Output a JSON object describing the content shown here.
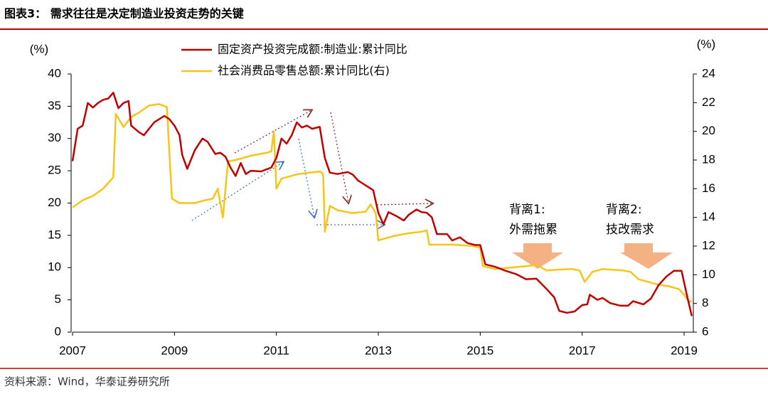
{
  "chart_data": {
    "type": "line",
    "title": "图表3：  需求往往是决定制造业投资走势的关键",
    "source": "资料来源：Wind，华泰证券研究所",
    "y_label": "(%)",
    "y2_label": "(%)",
    "xlim": [
      2007,
      2019.2
    ],
    "xticks": [
      2007,
      2009,
      2011,
      2013,
      2015,
      2017,
      2019
    ],
    "ylim": [
      0,
      40
    ],
    "yticks": [
      0,
      5,
      10,
      15,
      20,
      25,
      30,
      35,
      40
    ],
    "y2lim": [
      6,
      24
    ],
    "y2ticks": [
      6,
      8,
      10,
      12,
      14,
      16,
      18,
      20,
      22,
      24
    ],
    "legend": "top",
    "annotations": [
      "背离1:",
      "外需拖累",
      "背离2:",
      "技改需求"
    ],
    "series": [
      {
        "name": "固定资产投资完成额:制造业:累计同比",
        "color": "#c00000",
        "axis": "y",
        "x": [
          2007.0,
          2007.1,
          2007.2,
          2007.3,
          2007.4,
          2007.5,
          2007.6,
          2007.7,
          2007.8,
          2007.9,
          2008.0,
          2008.1,
          2008.15,
          2008.3,
          2008.4,
          2008.6,
          2008.8,
          2008.9,
          2009.0,
          2009.1,
          2009.15,
          2009.25,
          2009.4,
          2009.55,
          2009.65,
          2009.8,
          2009.9,
          2010.0,
          2010.1,
          2010.2,
          2010.3,
          2010.4,
          2010.5,
          2010.7,
          2010.9,
          2011.0,
          2011.1,
          2011.2,
          2011.3,
          2011.4,
          2011.5,
          2011.6,
          2011.7,
          2011.85,
          2011.95,
          2012.05,
          2012.2,
          2012.4,
          2012.5,
          2012.6,
          2012.8,
          2012.9,
          2013.0,
          2013.1,
          2013.2,
          2013.35,
          2013.5,
          2013.6,
          2013.75,
          2013.85,
          2013.95,
          2014.05,
          2014.15,
          2014.35,
          2014.45,
          2014.6,
          2014.75,
          2014.9,
          2015.0,
          2015.1,
          2015.3,
          2015.5,
          2015.7,
          2015.9,
          2016.1,
          2016.3,
          2016.45,
          2016.55,
          2016.7,
          2016.85,
          2017.0,
          2017.1,
          2017.15,
          2017.3,
          2017.4,
          2017.55,
          2017.75,
          2017.9,
          2018.0,
          2018.2,
          2018.35,
          2018.5,
          2018.65,
          2018.8,
          2018.95,
          2019.05,
          2019.15
        ],
        "values": [
          26.5,
          31.5,
          32,
          35.5,
          34.8,
          35.5,
          36,
          36.2,
          37.1,
          34.7,
          35.5,
          35.8,
          32,
          31,
          30.5,
          32.5,
          33.5,
          33,
          32,
          30.5,
          27.5,
          25.3,
          28.2,
          30,
          29.5,
          27.6,
          27.8,
          27.2,
          25.5,
          24.2,
          26.2,
          24.5,
          25,
          24.9,
          25.5,
          27,
          30,
          29.2,
          30.5,
          32.5,
          31.7,
          32,
          31.5,
          31.8,
          27,
          24.7,
          24.5,
          24.8,
          24.4,
          23.5,
          22.5,
          22,
          18.5,
          16.7,
          18.6,
          18,
          17.3,
          18.2,
          19,
          18.6,
          18.5,
          17.8,
          15.2,
          15.2,
          14.2,
          14.7,
          13.8,
          13.5,
          13.5,
          10.5,
          10.1,
          9.5,
          9,
          8.2,
          8.3,
          6.7,
          5.4,
          3.3,
          3,
          3.2,
          4.2,
          4.3,
          5.8,
          5,
          5.3,
          4.5,
          4.1,
          4.1,
          4.8,
          4.3,
          5.2,
          7.3,
          8.6,
          9.5,
          9.5,
          5.9,
          2.5
        ]
      },
      {
        "name": "社会消费品零售总额:累计同比(右)",
        "color": "#f5c518",
        "axis": "y2",
        "x": [
          2007.0,
          2007.2,
          2007.4,
          2007.6,
          2007.8,
          2007.85,
          2008.0,
          2008.15,
          2008.3,
          2008.5,
          2008.7,
          2008.85,
          2008.95,
          2009.1,
          2009.4,
          2009.6,
          2009.75,
          2009.85,
          2009.95,
          2010.05,
          2010.2,
          2010.5,
          2010.8,
          2010.9,
          2010.95,
          2011.0,
          2011.1,
          2011.4,
          2011.6,
          2011.85,
          2011.9,
          2011.92,
          2011.95,
          2012.05,
          2012.2,
          2012.5,
          2012.75,
          2012.85,
          2012.95,
          2013.0,
          2013.3,
          2013.6,
          2013.85,
          2013.95,
          2014.0,
          2014.2,
          2014.5,
          2014.85,
          2015.0,
          2015.05,
          2015.3,
          2015.6,
          2015.9,
          2016.1,
          2016.3,
          2016.5,
          2016.8,
          2016.95,
          2017.05,
          2017.2,
          2017.4,
          2017.8,
          2017.95,
          2018.1,
          2018.3,
          2018.5,
          2018.7,
          2018.9,
          2019.0,
          2019.1,
          2019.15
        ],
        "values": [
          14.7,
          15.2,
          15.5,
          16,
          16.8,
          21.2,
          20.3,
          21,
          21.3,
          21.8,
          21.9,
          21.7,
          15.3,
          15,
          15,
          15.2,
          15.3,
          16,
          14,
          17.9,
          18,
          18.3,
          18.5,
          18.6,
          20,
          16,
          16.7,
          17,
          17.1,
          17.2,
          17.1,
          16.8,
          13,
          14.8,
          14.5,
          14.3,
          14.4,
          14.9,
          14.3,
          12.4,
          12.7,
          12.9,
          13,
          13.1,
          12.1,
          12.1,
          12.1,
          12,
          11.9,
          10.6,
          10.4,
          10.5,
          10.6,
          10.7,
          10.3,
          10.35,
          10.4,
          10.3,
          9.5,
          10.2,
          10.4,
          10.3,
          10.2,
          9.7,
          9.5,
          9.3,
          9.2,
          9,
          8.6,
          8.1,
          8.2
        ]
      }
    ]
  }
}
